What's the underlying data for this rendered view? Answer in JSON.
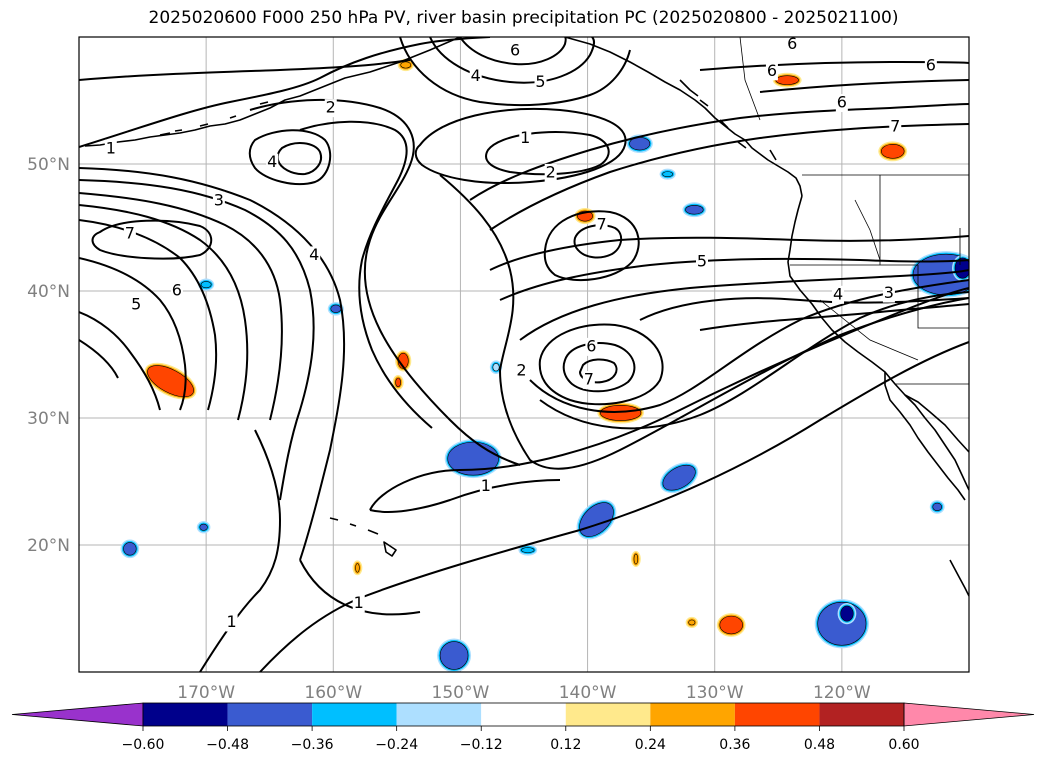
{
  "title": "2025020600 F000 250 hPa PV, river basin precipitation PC (2025020800 - 2025021100)",
  "map": {
    "projection": "PlateCarree",
    "extent_lon": [
      -180,
      -110
    ],
    "extent_lat": [
      10,
      60
    ],
    "lat_ticks": [
      {
        "lat": 50,
        "label": "50°N"
      },
      {
        "lat": 40,
        "label": "40°N"
      },
      {
        "lat": 30,
        "label": "30°N"
      },
      {
        "lat": 20,
        "label": "20°N"
      }
    ],
    "lon_ticks": [
      {
        "lon": -170,
        "label": "170°W"
      },
      {
        "lon": -160,
        "label": "160°W"
      },
      {
        "lon": -150,
        "label": "150°W"
      },
      {
        "lon": -140,
        "label": "140°W"
      },
      {
        "lon": -130,
        "label": "130°W"
      },
      {
        "lon": -120,
        "label": "120°W"
      }
    ],
    "gridlines": true,
    "colors": {
      "frame": "#000000",
      "grid": "#b5b5b5",
      "tick_labels": "#808080",
      "contours": "#000000"
    }
  },
  "contour_labels": [
    {
      "text": "1",
      "lon": -177.5,
      "lat": 51.2
    },
    {
      "text": "2",
      "lon": -160.2,
      "lat": 54.4
    },
    {
      "text": "4",
      "lon": -164.8,
      "lat": 50.1
    },
    {
      "text": "3",
      "lon": -169.0,
      "lat": 47.1
    },
    {
      "text": "7",
      "lon": -176.0,
      "lat": 44.5
    },
    {
      "text": "4",
      "lon": -161.5,
      "lat": 42.8
    },
    {
      "text": "6",
      "lon": -172.3,
      "lat": 40.0
    },
    {
      "text": "5",
      "lon": -175.5,
      "lat": 38.9
    },
    {
      "text": "4",
      "lon": -148.8,
      "lat": 56.9
    },
    {
      "text": "6",
      "lon": -145.7,
      "lat": 58.9
    },
    {
      "text": "5",
      "lon": -143.7,
      "lat": 56.4
    },
    {
      "text": "1",
      "lon": -144.9,
      "lat": 52.0
    },
    {
      "text": "2",
      "lon": -142.9,
      "lat": 49.3
    },
    {
      "text": "7",
      "lon": -138.9,
      "lat": 45.2
    },
    {
      "text": "5",
      "lon": -131.0,
      "lat": 42.3
    },
    {
      "text": "6",
      "lon": -139.7,
      "lat": 35.6
    },
    {
      "text": "7",
      "lon": -139.9,
      "lat": 33.0
    },
    {
      "text": "2",
      "lon": -145.2,
      "lat": 33.7
    },
    {
      "text": "1",
      "lon": -148.0,
      "lat": 24.6
    },
    {
      "text": "1",
      "lon": -158.0,
      "lat": 15.4
    },
    {
      "text": "1",
      "lon": -168.0,
      "lat": 13.9
    },
    {
      "text": "6",
      "lon": -123.9,
      "lat": 59.4
    },
    {
      "text": "6",
      "lon": -125.5,
      "lat": 57.3
    },
    {
      "text": "6",
      "lon": -113.0,
      "lat": 57.7
    },
    {
      "text": "6",
      "lon": -120.0,
      "lat": 54.8
    },
    {
      "text": "7",
      "lon": -115.8,
      "lat": 52.9
    },
    {
      "text": "4",
      "lon": -120.3,
      "lat": 39.7
    },
    {
      "text": "3",
      "lon": -116.3,
      "lat": 39.8
    }
  ],
  "colorbar": {
    "ticks": [
      "−0.60",
      "−0.48",
      "−0.36",
      "−0.24",
      "−0.12",
      "0.12",
      "0.24",
      "0.36",
      "0.48",
      "0.60"
    ],
    "extend": "both",
    "colors": {
      "under": "#9932cc",
      "bins": [
        "#00008b",
        "#3a5bd0",
        "#00bfff",
        "#addfff",
        "#ffffff",
        "#ffe98c",
        "#ffa500",
        "#ff4500",
        "#b22222"
      ],
      "over": "#ff88aa"
    }
  },
  "precip_blobs": [
    {
      "lon": -176,
      "lat": 19.7,
      "rx": 0.5,
      "ry": 0.5,
      "color": "#3a5bd0"
    },
    {
      "lon": -170.2,
      "lat": 21.4,
      "rx": 0.3,
      "ry": 0.25,
      "color": "#3a5bd0"
    },
    {
      "lon": -172.8,
      "lat": 32.9,
      "rx": 2.0,
      "ry": 0.9,
      "color": "#ff4500",
      "rot": 28
    },
    {
      "lon": -154.5,
      "lat": 34.5,
      "rx": 0.4,
      "ry": 0.6,
      "color": "#ff4500"
    },
    {
      "lon": -159.8,
      "lat": 38.6,
      "rx": 0.4,
      "ry": 0.3,
      "color": "#3a5bd0"
    },
    {
      "lon": -149.0,
      "lat": 26.8,
      "rx": 2.0,
      "ry": 1.3,
      "color": "#3a5bd0"
    },
    {
      "lon": -150.5,
      "lat": 11.3,
      "rx": 1.1,
      "ry": 1.1,
      "color": "#3a5bd0"
    },
    {
      "lon": -137.4,
      "lat": 30.4,
      "rx": 1.6,
      "ry": 0.6,
      "color": "#ff4500"
    },
    {
      "lon": -140.2,
      "lat": 45.9,
      "rx": 0.6,
      "ry": 0.4,
      "color": "#ff4500"
    },
    {
      "lon": -135.9,
      "lat": 51.6,
      "rx": 0.8,
      "ry": 0.5,
      "color": "#3a5bd0"
    },
    {
      "lon": -131.6,
      "lat": 46.4,
      "rx": 0.7,
      "ry": 0.35,
      "color": "#3a5bd0"
    },
    {
      "lon": -139.3,
      "lat": 22.0,
      "rx": 1.6,
      "ry": 1.0,
      "color": "#3a5bd0",
      "rot": -45
    },
    {
      "lon": -132.8,
      "lat": 25.3,
      "rx": 1.4,
      "ry": 0.8,
      "color": "#3a5bd0",
      "rot": -30
    },
    {
      "lon": -128.7,
      "lat": 13.7,
      "rx": 0.9,
      "ry": 0.7,
      "color": "#ff4500"
    },
    {
      "lon": -120.0,
      "lat": 13.8,
      "rx": 1.9,
      "ry": 1.7,
      "color": "#3a5bd0"
    },
    {
      "lon": -119.6,
      "lat": 14.6,
      "rx": 0.5,
      "ry": 0.6,
      "color": "#00008b"
    },
    {
      "lon": -124.3,
      "lat": 56.6,
      "rx": 0.9,
      "ry": 0.35,
      "color": "#ff4500"
    },
    {
      "lon": -116.0,
      "lat": 51.0,
      "rx": 0.9,
      "ry": 0.55,
      "color": "#ff4500"
    },
    {
      "lon": -111.8,
      "lat": 41.3,
      "rx": 2.6,
      "ry": 1.6,
      "color": "#3a5bd0"
    },
    {
      "lon": -110.5,
      "lat": 41.8,
      "rx": 0.6,
      "ry": 0.8,
      "color": "#00008b"
    },
    {
      "lon": -112.5,
      "lat": 23.0,
      "rx": 0.35,
      "ry": 0.3,
      "color": "#3a5bd0"
    },
    {
      "lon": -147.2,
      "lat": 34.0,
      "rx": 0.25,
      "ry": 0.3,
      "color": "#addfff"
    },
    {
      "lon": -136.2,
      "lat": 18.9,
      "rx": 0.15,
      "ry": 0.4,
      "color": "#ffa500"
    },
    {
      "lon": -158.1,
      "lat": 18.2,
      "rx": 0.15,
      "ry": 0.35,
      "color": "#ffa500"
    },
    {
      "lon": -154.9,
      "lat": 32.8,
      "rx": 0.2,
      "ry": 0.35,
      "color": "#ff4500"
    },
    {
      "lon": -144.7,
      "lat": 19.6,
      "rx": 0.5,
      "ry": 0.2,
      "color": "#00bfff"
    },
    {
      "lon": -170.0,
      "lat": 40.5,
      "rx": 0.4,
      "ry": 0.25,
      "color": "#00bfff"
    },
    {
      "lon": -154.3,
      "lat": 57.8,
      "rx": 0.4,
      "ry": 0.25,
      "color": "#ffa500"
    },
    {
      "lon": -131.8,
      "lat": 13.9,
      "rx": 0.25,
      "ry": 0.2,
      "color": "#ffa500"
    },
    {
      "lon": -133.7,
      "lat": 49.2,
      "rx": 0.4,
      "ry": 0.2,
      "color": "#00bfff"
    }
  ]
}
